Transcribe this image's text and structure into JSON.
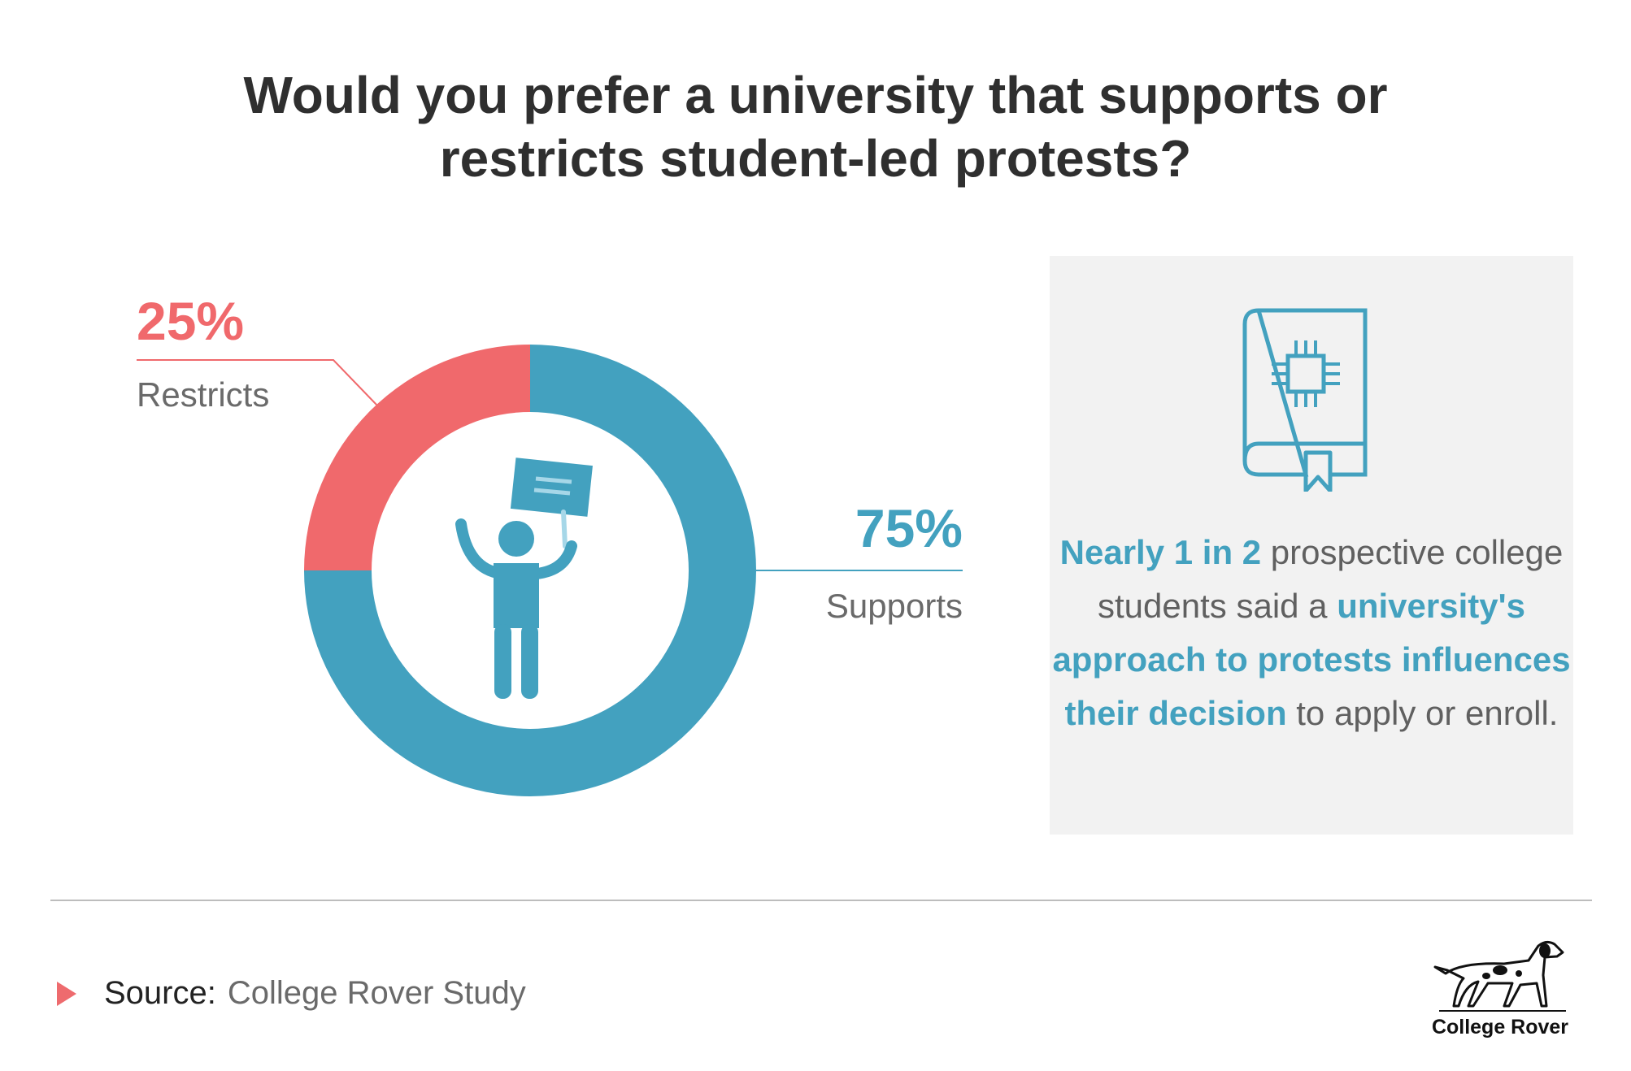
{
  "title": {
    "line1": "Would you prefer a university that supports or",
    "line2": "restricts student-led protests?"
  },
  "colors": {
    "supports": "#43a1bf",
    "restricts": "#f0696c",
    "text_dark": "#2f2f2f",
    "text_gray": "#6a6a6a",
    "box_bg": "#f2f2f2"
  },
  "chart_data": {
    "type": "pie",
    "title": "Would you prefer a university that supports or restricts student-led protests?",
    "categories": [
      "Supports",
      "Restricts"
    ],
    "values": [
      75,
      25
    ],
    "labels": [
      "75%",
      "25%"
    ],
    "colors": [
      "#43a1bf",
      "#f0696c"
    ]
  },
  "center_icon": "protester-with-sign-icon",
  "info": {
    "icon": "book-with-chip-icon",
    "seg1": "Nearly 1 in 2",
    "seg2": " prospective college students said a ",
    "seg3": "university's approach to protests influences their decision",
    "seg4": " to apply or enroll."
  },
  "source": {
    "label": "Source:",
    "value": "College Rover Study"
  },
  "logo": {
    "icon": "dog-icon",
    "text": "College Rover"
  }
}
